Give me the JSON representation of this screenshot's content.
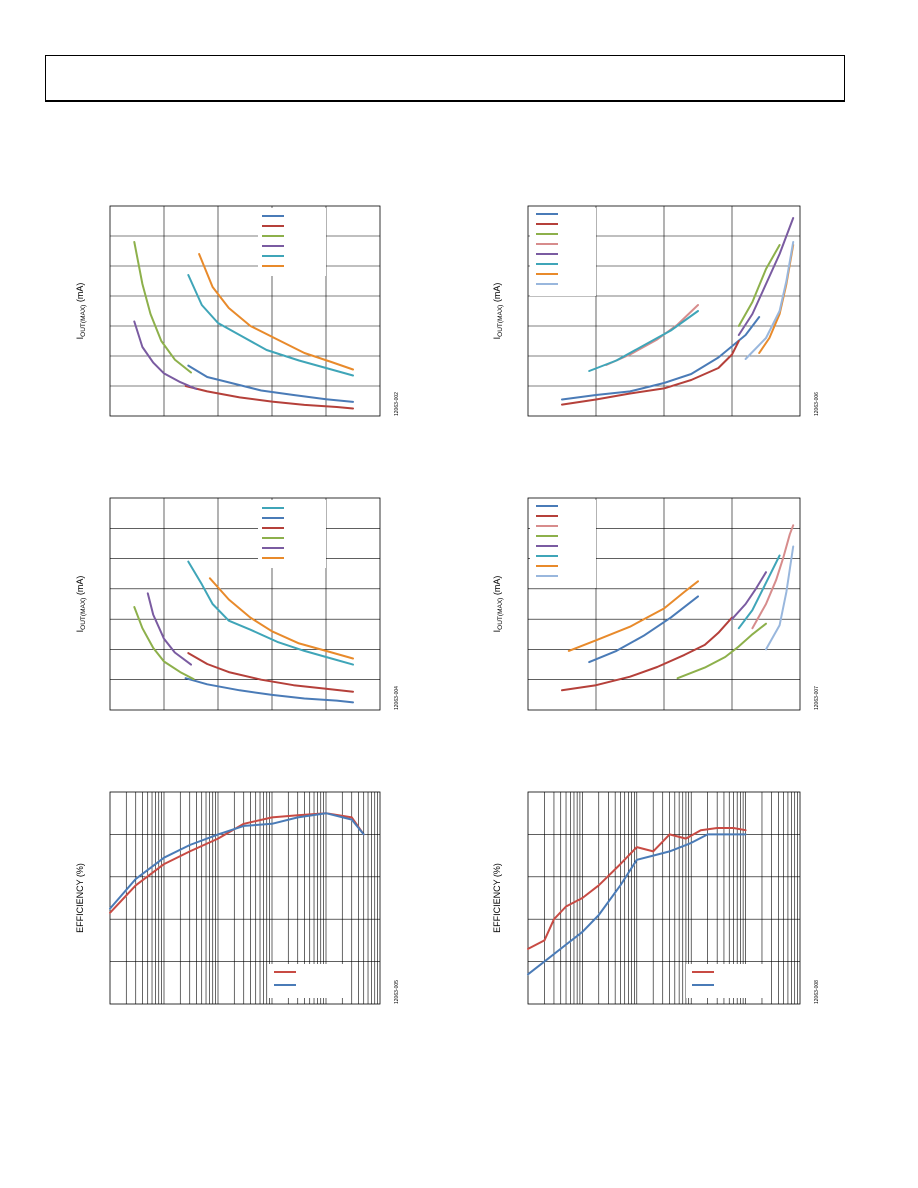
{
  "header": {
    "title": ""
  },
  "charts": [
    {
      "id": 1,
      "ylabel": "I_OUT(MAX) (mA)",
      "fig_id": "12063-002"
    },
    {
      "id": 2,
      "ylabel": "I_OUT(MAX) (mA)",
      "fig_id": "12063-006"
    },
    {
      "id": 3,
      "ylabel": "I_OUT(MAX) (mA)",
      "fig_id": "12063-004"
    },
    {
      "id": 4,
      "ylabel": "I_OUT(MAX) (mA)",
      "fig_id": "12063-007"
    },
    {
      "id": 5,
      "ylabel": "EFFICIENCY (%)",
      "fig_id": "12063-005"
    },
    {
      "id": 6,
      "ylabel": "EFFICIENCY (%)",
      "fig_id": "12063-008"
    }
  ],
  "chart_data": [
    {
      "type": "line",
      "xscale": "linear",
      "x_range": [
        0,
        5
      ],
      "y_range": [
        0,
        7
      ],
      "legend_placement": "top-center",
      "grid": "on",
      "series": [
        {
          "color": "#4a7bb7",
          "x": [
            1.45,
            1.8,
            2.2,
            2.8,
            3.4,
            4.0,
            4.5
          ],
          "y": [
            1.68,
            1.3,
            1.12,
            0.85,
            0.7,
            0.56,
            0.47
          ]
        },
        {
          "color": "#b5403a",
          "x": [
            1.4,
            1.8,
            2.4,
            3.0,
            3.6,
            4.2,
            4.5
          ],
          "y": [
            1.0,
            0.82,
            0.62,
            0.48,
            0.37,
            0.3,
            0.25
          ]
        },
        {
          "color": "#8db04b",
          "x": [
            0.45,
            0.6,
            0.75,
            0.95,
            1.2,
            1.5
          ],
          "y": [
            5.8,
            4.4,
            3.4,
            2.5,
            1.88,
            1.45
          ]
        },
        {
          "color": "#7a5ba1",
          "x": [
            0.45,
            0.6,
            0.8,
            1.0,
            1.3,
            1.6
          ],
          "y": [
            3.15,
            2.3,
            1.78,
            1.42,
            1.13,
            0.9
          ]
        },
        {
          "color": "#3fa5b8",
          "x": [
            1.45,
            1.7,
            2.0,
            2.4,
            2.9,
            3.5,
            4.0,
            4.5
          ],
          "y": [
            4.7,
            3.7,
            3.1,
            2.7,
            2.2,
            1.85,
            1.6,
            1.35
          ]
        },
        {
          "color": "#e88a2b",
          "x": [
            1.65,
            1.9,
            2.2,
            2.6,
            3.1,
            3.6,
            4.1,
            4.5
          ],
          "y": [
            5.4,
            4.3,
            3.6,
            3.0,
            2.55,
            2.1,
            1.8,
            1.55
          ]
        }
      ]
    },
    {
      "type": "line",
      "xscale": "linear",
      "x_range": [
        0,
        4
      ],
      "y_range": [
        0,
        7
      ],
      "legend_placement": "top-left",
      "grid": "on",
      "series": [
        {
          "color": "#4a7bb7",
          "x": [
            0.5,
            1.0,
            1.5,
            2.0,
            2.4,
            2.8,
            3.2,
            3.4
          ],
          "y": [
            0.55,
            0.7,
            0.82,
            1.1,
            1.4,
            1.95,
            2.7,
            3.3
          ]
        },
        {
          "color": "#b5403a",
          "x": [
            0.5,
            1.0,
            1.5,
            2.0,
            2.4,
            2.8,
            3.0,
            3.1
          ],
          "y": [
            0.38,
            0.55,
            0.75,
            0.92,
            1.2,
            1.6,
            2.05,
            2.5
          ]
        },
        {
          "color": "#8db04b",
          "x": [
            3.1,
            3.3,
            3.5,
            3.7
          ],
          "y": [
            3.0,
            3.8,
            4.9,
            5.7
          ]
        },
        {
          "color": "#d78c8c",
          "x": [
            1.15,
            1.5,
            1.9,
            2.2,
            2.5
          ],
          "y": [
            1.7,
            2.05,
            2.55,
            3.05,
            3.7
          ]
        },
        {
          "color": "#7a5ba1",
          "x": [
            3.1,
            3.3,
            3.5,
            3.7,
            3.9
          ],
          "y": [
            2.7,
            3.4,
            4.4,
            5.4,
            6.6
          ]
        },
        {
          "color": "#3fa5b8",
          "x": [
            0.9,
            1.3,
            1.7,
            2.1,
            2.5
          ],
          "y": [
            1.5,
            1.85,
            2.35,
            2.85,
            3.5
          ]
        },
        {
          "color": "#e88a2b",
          "x": [
            3.4,
            3.55,
            3.7,
            3.8,
            3.9
          ],
          "y": [
            2.1,
            2.6,
            3.4,
            4.4,
            5.7
          ]
        },
        {
          "color": "#99b7dd",
          "x": [
            3.2,
            3.5,
            3.7,
            3.8,
            3.9
          ],
          "y": [
            1.9,
            2.6,
            3.5,
            4.5,
            5.8
          ]
        }
      ]
    },
    {
      "type": "line",
      "xscale": "linear",
      "x_range": [
        0,
        5
      ],
      "y_range": [
        0,
        7
      ],
      "legend_placement": "top-center",
      "grid": "on",
      "series": [
        {
          "color": "#3fa5b8",
          "x": [
            1.45,
            1.7,
            1.9,
            2.2,
            2.6,
            3.1,
            3.6,
            4.1,
            4.5
          ],
          "y": [
            4.9,
            4.15,
            3.5,
            2.95,
            2.65,
            2.25,
            1.95,
            1.7,
            1.5
          ]
        },
        {
          "color": "#4a7bb7",
          "x": [
            1.4,
            1.8,
            2.4,
            3.0,
            3.6,
            4.2,
            4.5
          ],
          "y": [
            1.05,
            0.85,
            0.65,
            0.5,
            0.38,
            0.31,
            0.25
          ]
        },
        {
          "color": "#b5403a",
          "x": [
            1.45,
            1.8,
            2.2,
            2.8,
            3.4,
            4.0,
            4.5
          ],
          "y": [
            1.88,
            1.52,
            1.25,
            1.0,
            0.82,
            0.7,
            0.6
          ]
        },
        {
          "color": "#8db04b",
          "x": [
            0.45,
            0.6,
            0.8,
            1.0,
            1.3,
            1.55
          ],
          "y": [
            3.4,
            2.7,
            2.05,
            1.6,
            1.25,
            1.02
          ]
        },
        {
          "color": "#7a5ba1",
          "x": [
            0.7,
            0.8,
            1.0,
            1.2,
            1.5
          ],
          "y": [
            3.85,
            3.15,
            2.35,
            1.9,
            1.5
          ]
        },
        {
          "color": "#e88a2b",
          "x": [
            1.85,
            2.2,
            2.6,
            3.0,
            3.5,
            4.0,
            4.5
          ],
          "y": [
            4.35,
            3.65,
            3.05,
            2.6,
            2.2,
            1.95,
            1.7
          ]
        }
      ]
    },
    {
      "type": "line",
      "xscale": "linear",
      "x_range": [
        0,
        4
      ],
      "y_range": [
        0,
        7
      ],
      "legend_placement": "top-left",
      "grid": "on",
      "series": [
        {
          "color": "#4a7bb7",
          "x": [
            0.9,
            1.3,
            1.7,
            2.1,
            2.5
          ],
          "y": [
            1.58,
            1.95,
            2.45,
            3.05,
            3.75
          ]
        },
        {
          "color": "#b5403a",
          "x": [
            0.5,
            1.0,
            1.5,
            1.9,
            2.3,
            2.6,
            2.8,
            3.0
          ],
          "y": [
            0.65,
            0.82,
            1.1,
            1.42,
            1.82,
            2.15,
            2.55,
            3.05
          ]
        },
        {
          "color": "#d78c8c",
          "x": [
            3.3,
            3.5,
            3.65,
            3.75,
            3.85,
            3.9
          ],
          "y": [
            2.7,
            3.5,
            4.3,
            5.0,
            5.8,
            6.1
          ]
        },
        {
          "color": "#8db04b",
          "x": [
            2.2,
            2.6,
            2.9,
            3.1,
            3.3,
            3.5
          ],
          "y": [
            1.05,
            1.4,
            1.75,
            2.1,
            2.5,
            2.85
          ]
        },
        {
          "color": "#7a5ba1",
          "x": [
            3.0,
            3.2,
            3.35,
            3.5
          ],
          "y": [
            3.0,
            3.5,
            4.0,
            4.55
          ]
        },
        {
          "color": "#3fa5b8",
          "x": [
            3.1,
            3.3,
            3.5,
            3.7
          ],
          "y": [
            2.7,
            3.3,
            4.2,
            5.1
          ]
        },
        {
          "color": "#e88a2b",
          "x": [
            0.6,
            1.0,
            1.5,
            2.0,
            2.3,
            2.5
          ],
          "y": [
            1.95,
            2.3,
            2.75,
            3.35,
            3.9,
            4.25
          ]
        },
        {
          "color": "#99b7dd",
          "x": [
            3.5,
            3.7,
            3.8,
            3.9
          ],
          "y": [
            2.0,
            2.8,
            3.9,
            5.4
          ]
        }
      ]
    },
    {
      "type": "line",
      "xscale": "log",
      "x_range": [
        0.01,
        1000
      ],
      "y_range": [
        50,
        100
      ],
      "legend_placement": "bottom-right",
      "grid": "on",
      "series": [
        {
          "color": "#c84b44",
          "x": [
            0.01,
            0.03,
            0.1,
            0.3,
            1,
            3,
            10,
            30,
            100,
            300,
            500
          ],
          "y": [
            71.5,
            78,
            83,
            86,
            89,
            92.5,
            94,
            94.5,
            95,
            94,
            90
          ]
        },
        {
          "color": "#4a7bb7",
          "x": [
            0.01,
            0.03,
            0.1,
            0.3,
            1,
            3,
            10,
            30,
            100,
            300,
            500
          ],
          "y": [
            72.5,
            79.5,
            84.5,
            87.5,
            90,
            92,
            92.5,
            94,
            95,
            93.5,
            90
          ]
        }
      ]
    },
    {
      "type": "line",
      "xscale": "log",
      "x_range": [
        0.01,
        1000
      ],
      "y_range": [
        50,
        100
      ],
      "legend_placement": "bottom-right",
      "grid": "on",
      "series": [
        {
          "color": "#c84b44",
          "x": [
            0.01,
            0.02,
            0.03,
            0.05,
            0.1,
            0.2,
            0.5,
            1,
            2,
            4,
            8,
            15,
            30,
            60,
            100
          ],
          "y": [
            63,
            65,
            70,
            73,
            75,
            78,
            83,
            87,
            86,
            90,
            89,
            91,
            91.5,
            91.5,
            91
          ]
        },
        {
          "color": "#4a7bb7",
          "x": [
            0.01,
            0.02,
            0.05,
            0.1,
            0.2,
            0.5,
            1,
            2,
            4,
            10,
            20,
            40,
            100
          ],
          "y": [
            57,
            60,
            64,
            67,
            71,
            78,
            84,
            85,
            86,
            88,
            90,
            90,
            90
          ]
        }
      ]
    }
  ]
}
